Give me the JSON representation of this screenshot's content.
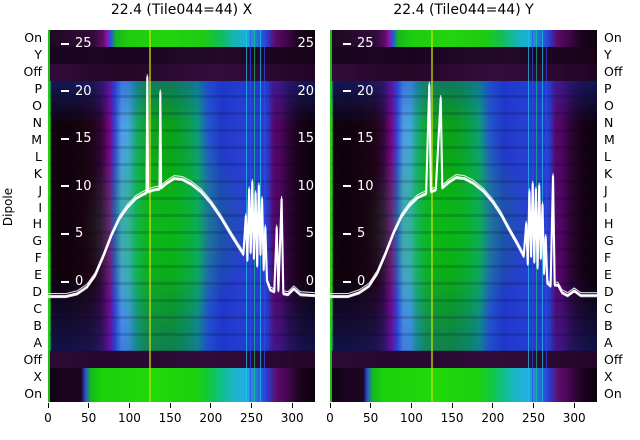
{
  "figure": {
    "dipole_axis_label": "Dipole",
    "row_labels": [
      "On",
      "Y",
      "Off",
      "P",
      "O",
      "N",
      "M",
      "L",
      "K",
      "J",
      "I",
      "H",
      "G",
      "F",
      "E",
      "D",
      "C",
      "B",
      "A",
      "Off",
      "X",
      "On"
    ],
    "inner_scale_ticks": [
      25,
      20,
      15,
      10,
      5,
      0
    ],
    "x_tick_labels": [
      0,
      50,
      100,
      150,
      200,
      250,
      300
    ],
    "colors": {
      "background": "#ffffff",
      "curve": "#ffffff",
      "axis_text": "#000000",
      "inner_tick_text": "#ffffff",
      "heat_black": "#0d010e",
      "heat_dark_purple": "#2a0430",
      "heat_purple": "#5b0566",
      "heat_magenta": "#7c068c",
      "heat_blue": "#2138c8",
      "heat_lightblue": "#4e9ce6",
      "heat_teal": "#0c9c78",
      "heat_green": "#0aa016",
      "heat_bright_green": "#22d40e",
      "heat_yellow_line": "#c8e100"
    }
  },
  "chart_data": [
    {
      "type": "heatmap",
      "title": "22.4 (Tile044=44) X",
      "x_ticks": [
        0,
        50,
        100,
        150,
        200,
        250,
        300
      ],
      "x_range": [
        0,
        328
      ],
      "row_categories": [
        "On",
        "Y",
        "Off",
        "P",
        "O",
        "N",
        "M",
        "L",
        "K",
        "J",
        "I",
        "H",
        "G",
        "F",
        "E",
        "D",
        "C",
        "B",
        "A",
        "Off",
        "X",
        "On"
      ],
      "colormap": "black-purple-blue-green-yellow spectral",
      "overlay_series": {
        "name": "dipole bandpass (white, all dipoles)",
        "y_scale_ticks": [
          25,
          20,
          15,
          10,
          5,
          0
        ],
        "points": [
          [
            0,
            -1.6
          ],
          [
            22,
            -1.6
          ],
          [
            36,
            -1.3
          ],
          [
            48,
            -0.6
          ],
          [
            58,
            0.6
          ],
          [
            68,
            2.6
          ],
          [
            78,
            4.8
          ],
          [
            88,
            6.6
          ],
          [
            98,
            7.8
          ],
          [
            108,
            8.7
          ],
          [
            116,
            9.1
          ],
          [
            121,
            9.3
          ],
          [
            122,
            21.4
          ],
          [
            123,
            9.4
          ],
          [
            130,
            9.6
          ],
          [
            137,
            9.7
          ],
          [
            138,
            19.8
          ],
          [
            139,
            9.8
          ],
          [
            146,
            10.3
          ],
          [
            155,
            10.8
          ],
          [
            165,
            10.7
          ],
          [
            176,
            10.2
          ],
          [
            188,
            9.4
          ],
          [
            200,
            8.2
          ],
          [
            212,
            6.7
          ],
          [
            224,
            5.0
          ],
          [
            234,
            3.6
          ],
          [
            240,
            2.8
          ],
          [
            243,
            6.8
          ],
          [
            245,
            2.2
          ],
          [
            247,
            9.6
          ],
          [
            249,
            3.0
          ],
          [
            251,
            10.4
          ],
          [
            253,
            2.4
          ],
          [
            255,
            9.2
          ],
          [
            257,
            1.6
          ],
          [
            259,
            10.0
          ],
          [
            261,
            2.8
          ],
          [
            263,
            8.6
          ],
          [
            265,
            1.2
          ],
          [
            267,
            5.6
          ],
          [
            269,
            0.0
          ],
          [
            273,
            -0.9
          ],
          [
            278,
            -1.1
          ],
          [
            281,
            5.6
          ],
          [
            283,
            -1.0
          ],
          [
            287,
            8.6
          ],
          [
            289,
            -1.3
          ],
          [
            295,
            -1.4
          ],
          [
            302,
            -0.8
          ],
          [
            310,
            -1.4
          ],
          [
            328,
            -1.5
          ]
        ]
      }
    },
    {
      "type": "heatmap",
      "title": "22.4 (Tile044=44) Y",
      "x_ticks": [
        0,
        50,
        100,
        150,
        200,
        250,
        300
      ],
      "x_range": [
        0,
        328
      ],
      "row_categories": [
        "On",
        "Y",
        "Off",
        "P",
        "O",
        "N",
        "M",
        "L",
        "K",
        "J",
        "I",
        "H",
        "G",
        "F",
        "E",
        "D",
        "C",
        "B",
        "A",
        "Off",
        "X",
        "On"
      ],
      "colormap": "black-purple-blue-green-yellow spectral",
      "overlay_series": {
        "name": "dipole bandpass (white, all dipoles)",
        "y_scale_ticks": [
          25,
          20,
          15,
          10,
          5,
          0
        ],
        "points": [
          [
            0,
            -1.6
          ],
          [
            22,
            -1.6
          ],
          [
            36,
            -1.2
          ],
          [
            48,
            -0.5
          ],
          [
            58,
            0.8
          ],
          [
            68,
            2.8
          ],
          [
            78,
            5.0
          ],
          [
            88,
            6.8
          ],
          [
            98,
            8.0
          ],
          [
            108,
            8.8
          ],
          [
            118,
            9.2
          ],
          [
            122,
            20.6
          ],
          [
            124,
            9.4
          ],
          [
            130,
            9.6
          ],
          [
            136,
            19.2
          ],
          [
            138,
            9.8
          ],
          [
            146,
            10.4
          ],
          [
            155,
            10.9
          ],
          [
            165,
            10.8
          ],
          [
            176,
            10.3
          ],
          [
            188,
            9.5
          ],
          [
            200,
            8.3
          ],
          [
            210,
            7.0
          ],
          [
            220,
            5.4
          ],
          [
            230,
            3.9
          ],
          [
            238,
            2.6
          ],
          [
            241,
            6.0
          ],
          [
            243,
            1.8
          ],
          [
            245,
            9.4
          ],
          [
            247,
            2.6
          ],
          [
            249,
            10.2
          ],
          [
            251,
            2.0
          ],
          [
            253,
            9.6
          ],
          [
            255,
            1.4
          ],
          [
            257,
            10.0
          ],
          [
            259,
            2.4
          ],
          [
            261,
            8.0
          ],
          [
            263,
            0.8
          ],
          [
            265,
            4.6
          ],
          [
            267,
            -0.2
          ],
          [
            271,
            -0.5
          ],
          [
            274,
            11.0
          ],
          [
            276,
            -0.4
          ],
          [
            280,
            -0.4
          ],
          [
            285,
            -1.2
          ],
          [
            292,
            -1.5
          ],
          [
            300,
            -1.0
          ],
          [
            308,
            -1.5
          ],
          [
            328,
            -1.5
          ]
        ]
      }
    }
  ]
}
